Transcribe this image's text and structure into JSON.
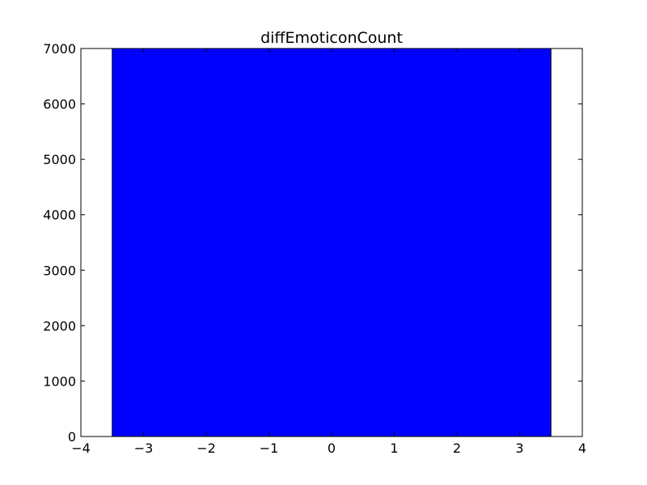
{
  "chart_data": {
    "type": "bar",
    "title": "diffEmoticonCount",
    "xlabel": "",
    "ylabel": "",
    "xlim": [
      -4,
      4
    ],
    "ylim": [
      0,
      7000
    ],
    "x_ticks": [
      -4,
      -3,
      -2,
      -1,
      0,
      1,
      2,
      3,
      4
    ],
    "x_tick_labels": [
      "−4",
      "−3",
      "−2",
      "−1",
      "0",
      "1",
      "2",
      "3",
      "4"
    ],
    "y_ticks": [
      0,
      1000,
      2000,
      3000,
      4000,
      5000,
      6000,
      7000
    ],
    "y_tick_labels": [
      "0",
      "1000",
      "2000",
      "3000",
      "4000",
      "5000",
      "6000",
      "7000"
    ],
    "bars": [
      {
        "x_start": -3.5,
        "x_end": 3.5,
        "value": 7000
      }
    ],
    "bar_color": "#0000ff",
    "edge_color": "#000000",
    "grid": false,
    "legend": "none"
  }
}
